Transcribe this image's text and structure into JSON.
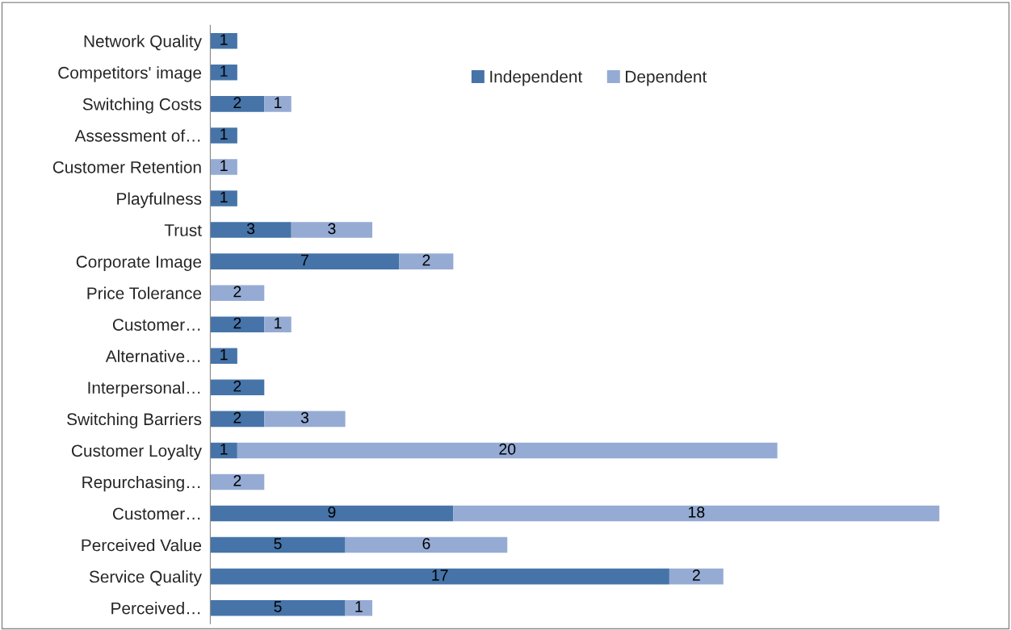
{
  "chart_data": {
    "type": "bar",
    "orientation": "horizontal",
    "stacked": true,
    "data_labels": true,
    "legend": "top",
    "grid": false,
    "categories": [
      "Network Quality",
      "Competitors' image",
      "Switching Costs",
      "Assessment of…",
      "Customer Retention",
      "Playfulness",
      "Trust",
      "Corporate Image",
      "Price Tolerance",
      "Customer…",
      "Alternative…",
      "Interpersonal…",
      "Switching Barriers",
      "Customer Loyalty",
      "Repurchasing…",
      "Customer…",
      "Perceived Value",
      "Service Quality",
      "Perceived…"
    ],
    "series": [
      {
        "name": "Independent",
        "color": "#4674a9",
        "values": [
          1,
          1,
          2,
          1,
          null,
          1,
          3,
          7,
          null,
          2,
          1,
          2,
          2,
          1,
          null,
          9,
          5,
          17,
          5
        ]
      },
      {
        "name": "Dependent",
        "color": "#95abd4",
        "values": [
          null,
          null,
          1,
          null,
          1,
          null,
          3,
          2,
          2,
          1,
          null,
          null,
          3,
          20,
          2,
          18,
          6,
          2,
          1
        ]
      }
    ]
  }
}
